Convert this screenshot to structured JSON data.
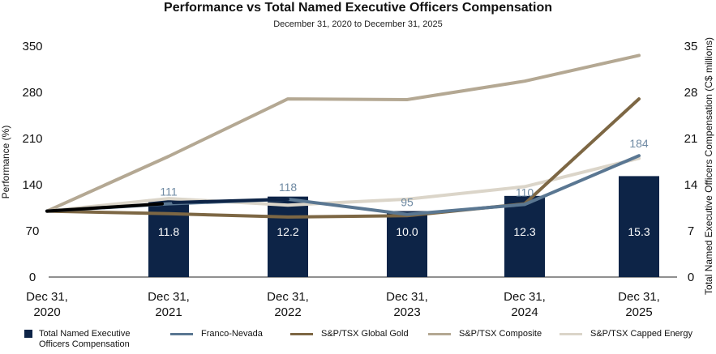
{
  "chart_data": {
    "type": "bar+line",
    "title": "Performance vs Total Named Executive Officers Compensation",
    "subtitle": "December 31, 2020 to December 31, 2025",
    "ylabel_left": "Performance (%)",
    "ylabel_right": "Total Named Executive Officers Compensation (C$ millions)",
    "ylim_left": [
      0,
      350
    ],
    "ylim_right": [
      0,
      35
    ],
    "yticks_left": [
      "0",
      "70",
      "140",
      "210",
      "280",
      "350"
    ],
    "yticks_right": [
      "0",
      "7",
      "14",
      "21",
      "28",
      "35"
    ],
    "categories": [
      [
        "Dec 31,",
        "2020"
      ],
      [
        "Dec 31,",
        "2021"
      ],
      [
        "Dec 31,",
        "2022"
      ],
      [
        "Dec 31,",
        "2023"
      ],
      [
        "Dec 31,",
        "2024"
      ],
      [
        "Dec 31,",
        "2025"
      ]
    ],
    "bars": {
      "name": "Total Named Executive Officers Compensation",
      "name_lines": [
        "Total Named Executive",
        "Officers Compensation"
      ],
      "color": "#0d2447",
      "values": [
        null,
        11.8,
        12.2,
        10.0,
        12.3,
        15.3
      ],
      "labels": [
        "",
        "11.8",
        "12.2",
        "10.0",
        "12.3",
        "15.3"
      ]
    },
    "series": [
      {
        "name": "S&P/TSX Composite",
        "color": "#b4a893",
        "values": [
          100,
          183,
          270,
          269,
          297,
          336
        ]
      },
      {
        "name": "S&P/TSX Capped Energy",
        "color": "#dbd5c9",
        "values": [
          100,
          119,
          109,
          118,
          137,
          180
        ]
      },
      {
        "name": "S&P/TSX Global Gold",
        "color": "#7d6744",
        "values": [
          100,
          96,
          91,
          93,
          111,
          270
        ]
      },
      {
        "name": "Franco-Nevada",
        "color": "#5a7792",
        "values": [
          100,
          111,
          118,
          95,
          110,
          184
        ],
        "labels": [
          "",
          "111",
          "118",
          "95",
          "110",
          "184"
        ]
      }
    ],
    "legend_order": [
      "Total Named Executive Officers Compensation",
      "Franco-Nevada",
      "S&P/TSX Global Gold",
      "S&P/TSX Composite",
      "S&P/TSX Capped Energy"
    ]
  }
}
